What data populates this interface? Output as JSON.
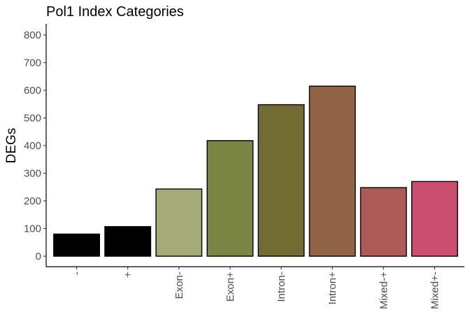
{
  "chart_data": {
    "type": "bar",
    "title": "Pol1 Index Categories",
    "xlabel": "",
    "ylabel": "DEGs",
    "categories": [
      "-",
      "+",
      "Exon-",
      "Exon+",
      "Intron-",
      "Intron+",
      "Mixed-+",
      "Mixed+-"
    ],
    "values": [
      80,
      107,
      243,
      418,
      548,
      615,
      248,
      270
    ],
    "colors": [
      "#000000",
      "#000000",
      "#a5ab78",
      "#7b8544",
      "#736c32",
      "#916446",
      "#ae5a57",
      "#cb4e6f"
    ],
    "ylim": [
      0,
      840
    ],
    "yticks": [
      0,
      100,
      200,
      300,
      400,
      500,
      600,
      700,
      800
    ],
    "grid": false,
    "legend": "none"
  }
}
